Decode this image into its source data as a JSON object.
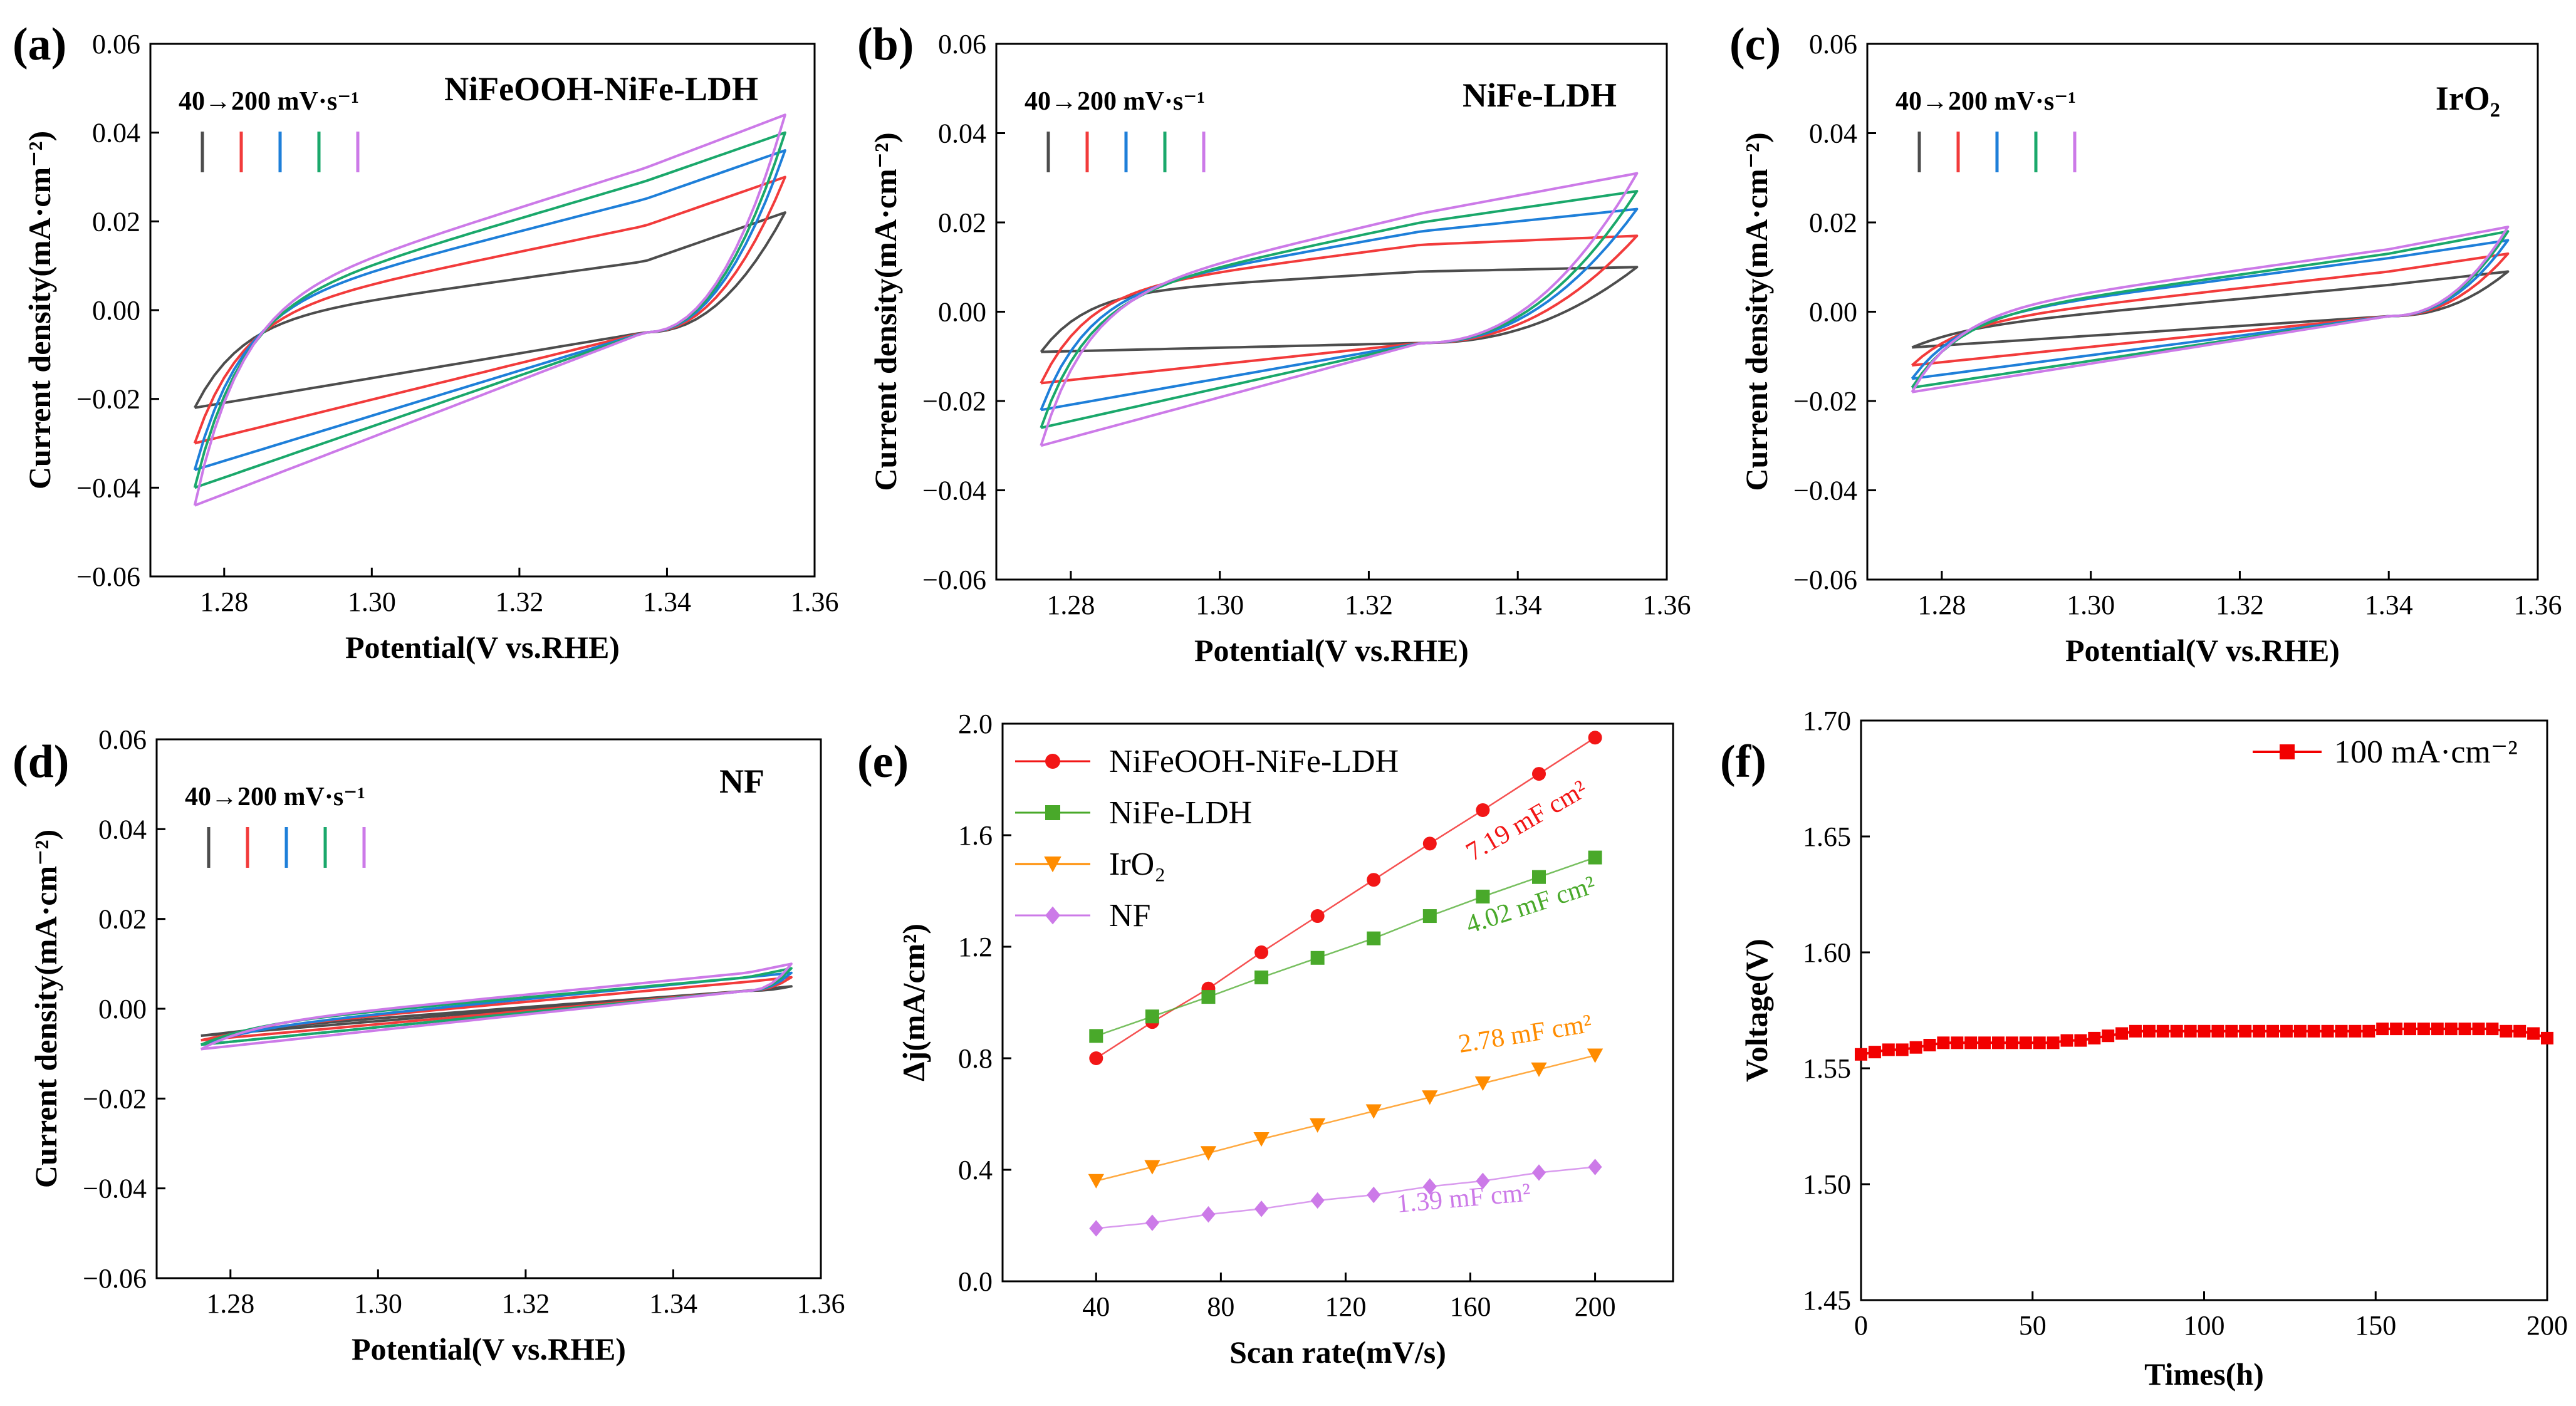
{
  "figure": {
    "colors": {
      "black": "#4d4d4d",
      "red": "#f23b3b",
      "blue": "#1e7fd9",
      "green": "#1aa86b",
      "violet": "#cc7ae8",
      "e_red": "#f21616",
      "e_green": "#49a92a",
      "e_orange": "#ff8c00",
      "e_violet": "#cc7ae8",
      "f_red": "#f20000"
    }
  },
  "chart_data": [
    {
      "id": "a",
      "letter": "(a)",
      "type": "line",
      "title": "NiFeOOH-NiFe-LDH",
      "xlabel": "Potential(V vs.RHE)",
      "ylabel": "Current density(mA·cm⁻²)",
      "xlim": [
        1.27,
        1.36
      ],
      "ylim": [
        -0.06,
        0.06
      ],
      "xticks": [
        "1.28",
        "1.30",
        "1.32",
        "1.34",
        "1.36"
      ],
      "yticks": [
        "−0.06",
        "−0.04",
        "−0.02",
        "0.00",
        "0.02",
        "0.04",
        "0.06"
      ],
      "scan_label": "40→200 mV·s⁻¹",
      "crossing": [
        1.337,
        -0.005
      ],
      "curves": [
        {
          "name": "40 mV/s",
          "color": "#4d4d4d",
          "lower_start": -0.022,
          "upper_end": 0.022,
          "upper_at_crossing": 0.011,
          "lower_at_left": -0.003
        },
        {
          "name": "80 mV/s",
          "color": "#f23b3b",
          "lower_start": -0.03,
          "upper_end": 0.03,
          "upper_at_crossing": 0.019,
          "lower_at_left": -0.002
        },
        {
          "name": "120 mV/s",
          "color": "#1e7fd9",
          "lower_start": -0.036,
          "upper_end": 0.036,
          "upper_at_crossing": 0.025,
          "lower_at_left": -0.001
        },
        {
          "name": "160 mV/s",
          "color": "#1aa86b",
          "lower_start": -0.04,
          "upper_end": 0.04,
          "upper_at_crossing": 0.029,
          "lower_at_left": -0.001
        },
        {
          "name": "200 mV/s",
          "color": "#cc7ae8",
          "lower_start": -0.044,
          "upper_end": 0.044,
          "upper_at_crossing": 0.032,
          "lower_at_left": 0.0
        }
      ]
    },
    {
      "id": "b",
      "letter": "(b)",
      "type": "line",
      "title": "NiFe-LDH",
      "xlabel": "Potential(V vs.RHE)",
      "ylabel": "Current density(mA·cm⁻²)",
      "xlim": [
        1.27,
        1.36
      ],
      "ylim": [
        -0.06,
        0.06
      ],
      "xticks": [
        "1.28",
        "1.30",
        "1.32",
        "1.34",
        "1.36"
      ],
      "yticks": [
        "−0.06",
        "−0.04",
        "−0.02",
        "0.00",
        "0.02",
        "0.04",
        "0.06"
      ],
      "scan_label": "40→200 mV·s⁻¹",
      "crossing": [
        1.327,
        -0.007
      ],
      "curves": [
        {
          "name": "40 mV/s",
          "color": "#4d4d4d",
          "lower_start": -0.009,
          "upper_end": 0.01,
          "upper_at_crossing": 0.009,
          "lower_at_left": 0.004
        },
        {
          "name": "80 mV/s",
          "color": "#f23b3b",
          "lower_start": -0.016,
          "upper_end": 0.017,
          "upper_at_crossing": 0.015,
          "lower_at_left": 0.004
        },
        {
          "name": "120 mV/s",
          "color": "#1e7fd9",
          "lower_start": -0.022,
          "upper_end": 0.023,
          "upper_at_crossing": 0.018,
          "lower_at_left": 0.003
        },
        {
          "name": "160 mV/s",
          "color": "#1aa86b",
          "lower_start": -0.026,
          "upper_end": 0.027,
          "upper_at_crossing": 0.02,
          "lower_at_left": 0.002
        },
        {
          "name": "200 mV/s",
          "color": "#cc7ae8",
          "lower_start": -0.03,
          "upper_end": 0.031,
          "upper_at_crossing": 0.022,
          "lower_at_left": 0.002
        }
      ]
    },
    {
      "id": "c",
      "letter": "(c)",
      "type": "line",
      "title": "IrO₂",
      "xlabel": "Potential(V vs.RHE)",
      "ylabel": "Current density(mA·cm⁻²)",
      "xlim": [
        1.27,
        1.36
      ],
      "ylim": [
        -0.06,
        0.06
      ],
      "xticks": [
        "1.28",
        "1.30",
        "1.32",
        "1.34",
        "1.36"
      ],
      "yticks": [
        "−0.06",
        "−0.04",
        "−0.02",
        "0.00",
        "0.02",
        "0.04",
        "0.06"
      ],
      "scan_label": "40→200 mV·s⁻¹",
      "crossing": [
        1.34,
        -0.001
      ],
      "curves": [
        {
          "name": "40 mV/s",
          "color": "#4d4d4d",
          "lower_start": -0.008,
          "upper_end": 0.009,
          "upper_at_crossing": 0.006,
          "lower_at_left": -0.004
        },
        {
          "name": "80 mV/s",
          "color": "#f23b3b",
          "lower_start": -0.012,
          "upper_end": 0.013,
          "upper_at_crossing": 0.009,
          "lower_at_left": -0.003
        },
        {
          "name": "120 mV/s",
          "color": "#1e7fd9",
          "lower_start": -0.015,
          "upper_end": 0.016,
          "upper_at_crossing": 0.012,
          "lower_at_left": -0.002
        },
        {
          "name": "160 mV/s",
          "color": "#1aa86b",
          "lower_start": -0.017,
          "upper_end": 0.018,
          "upper_at_crossing": 0.013,
          "lower_at_left": -0.002
        },
        {
          "name": "200 mV/s",
          "color": "#cc7ae8",
          "lower_start": -0.018,
          "upper_end": 0.019,
          "upper_at_crossing": 0.014,
          "lower_at_left": -0.001
        }
      ]
    },
    {
      "id": "d",
      "letter": "(d)",
      "type": "line",
      "title": "NF",
      "xlabel": "Potential(V vs.RHE)",
      "ylabel": "Current density(mA·cm⁻²)",
      "xlim": [
        1.27,
        1.36
      ],
      "ylim": [
        -0.06,
        0.06
      ],
      "xticks": [
        "1.28",
        "1.30",
        "1.32",
        "1.34",
        "1.36"
      ],
      "yticks": [
        "−0.06",
        "−0.04",
        "−0.02",
        "0.00",
        "0.02",
        "0.04",
        "0.06"
      ],
      "scan_label": "40→200 mV·s⁻¹",
      "crossing": [
        1.35,
        0.004
      ],
      "curves": [
        {
          "name": "40 mV/s",
          "color": "#4d4d4d",
          "lower_start": -0.006,
          "upper_end": 0.005,
          "upper_at_crossing": 0.004,
          "lower_at_left": -0.005
        },
        {
          "name": "80 mV/s",
          "color": "#f23b3b",
          "lower_start": -0.007,
          "upper_end": 0.007,
          "upper_at_crossing": 0.006,
          "lower_at_left": -0.005
        },
        {
          "name": "120 mV/s",
          "color": "#1e7fd9",
          "lower_start": -0.008,
          "upper_end": 0.008,
          "upper_at_crossing": 0.007,
          "lower_at_left": -0.005
        },
        {
          "name": "160 mV/s",
          "color": "#1aa86b",
          "lower_start": -0.008,
          "upper_end": 0.009,
          "upper_at_crossing": 0.007,
          "lower_at_left": -0.004
        },
        {
          "name": "200 mV/s",
          "color": "#cc7ae8",
          "lower_start": -0.009,
          "upper_end": 0.01,
          "upper_at_crossing": 0.008,
          "lower_at_left": -0.004
        }
      ]
    },
    {
      "id": "e",
      "letter": "(e)",
      "type": "scatter",
      "xlabel": "Scan rate(mV/s)",
      "ylabel": "Δj(mA/cm²)",
      "xlim": [
        10,
        225
      ],
      "ylim": [
        0,
        2.0
      ],
      "xticks": [
        40,
        80,
        120,
        160,
        200
      ],
      "yticks": [
        "0.0",
        "0.4",
        "0.8",
        "1.2",
        "1.6",
        "2.0"
      ],
      "x": [
        40,
        58,
        76,
        93,
        111,
        129,
        147,
        164,
        182,
        200
      ],
      "series": [
        {
          "name": "NiFeOOH-NiFe-LDH",
          "marker": "circle",
          "color": "#f21616",
          "values": [
            0.8,
            0.93,
            1.05,
            1.18,
            1.31,
            1.44,
            1.57,
            1.69,
            1.82,
            1.95
          ],
          "slope_label": "7.19 mF cm²"
        },
        {
          "name": "NiFe-LDH",
          "marker": "square",
          "color": "#49a92a",
          "values": [
            0.88,
            0.95,
            1.02,
            1.09,
            1.16,
            1.23,
            1.31,
            1.38,
            1.45,
            1.52
          ],
          "slope_label": "4.02 mF cm²"
        },
        {
          "name": "IrO₂",
          "marker": "triangle-down",
          "color": "#ff8c00",
          "values": [
            0.36,
            0.41,
            0.46,
            0.51,
            0.56,
            0.61,
            0.66,
            0.71,
            0.76,
            0.81
          ],
          "slope_label": "2.78 mF cm²"
        },
        {
          "name": "NF",
          "marker": "diamond",
          "color": "#cc7ae8",
          "values": [
            0.19,
            0.21,
            0.24,
            0.26,
            0.29,
            0.31,
            0.34,
            0.36,
            0.39,
            0.41
          ],
          "slope_label": "1.39 mF cm²"
        }
      ]
    },
    {
      "id": "f",
      "letter": "(f)",
      "type": "line",
      "xlabel": "Times(h)",
      "ylabel": "Voltage(V)",
      "xlim": [
        0,
        200
      ],
      "ylim": [
        1.45,
        1.7
      ],
      "xticks": [
        0,
        50,
        100,
        150,
        200
      ],
      "yticks": [
        "1.45",
        "1.50",
        "1.55",
        "1.60",
        "1.65",
        "1.70"
      ],
      "series": [
        {
          "name": "100 mA·cm⁻²",
          "color": "#f20000",
          "marker": "square",
          "x": [
            0,
            4,
            8,
            12,
            16,
            20,
            24,
            28,
            32,
            36,
            40,
            44,
            48,
            52,
            56,
            60,
            64,
            68,
            72,
            76,
            80,
            84,
            88,
            92,
            96,
            100,
            104,
            108,
            112,
            116,
            120,
            124,
            128,
            132,
            136,
            140,
            144,
            148,
            152,
            156,
            160,
            164,
            168,
            172,
            176,
            180,
            184,
            188,
            192,
            196,
            200
          ],
          "y": [
            1.556,
            1.557,
            1.558,
            1.558,
            1.559,
            1.56,
            1.561,
            1.561,
            1.561,
            1.561,
            1.561,
            1.561,
            1.561,
            1.561,
            1.561,
            1.562,
            1.562,
            1.563,
            1.564,
            1.565,
            1.566,
            1.566,
            1.566,
            1.566,
            1.566,
            1.566,
            1.566,
            1.566,
            1.566,
            1.566,
            1.566,
            1.566,
            1.566,
            1.566,
            1.566,
            1.566,
            1.566,
            1.566,
            1.567,
            1.567,
            1.567,
            1.567,
            1.567,
            1.567,
            1.567,
            1.567,
            1.567,
            1.566,
            1.566,
            1.565,
            1.563
          ]
        }
      ]
    }
  ]
}
